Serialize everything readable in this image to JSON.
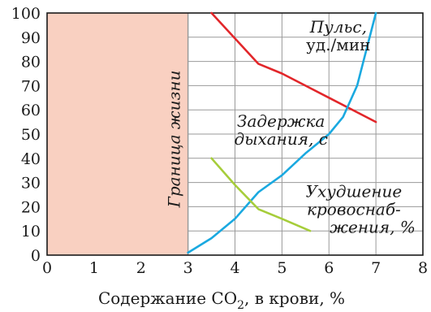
{
  "chart_data": {
    "type": "line",
    "xlabel": "Содержание CO",
    "xlabel_sub": "2",
    "xlabel_tail": ", в крови,  %",
    "xlim": [
      0,
      8
    ],
    "ylim": [
      0,
      100
    ],
    "x_ticks": [
      0,
      1,
      2,
      3,
      4,
      5,
      6,
      7,
      8
    ],
    "y_ticks": [
      0,
      10,
      20,
      30,
      40,
      50,
      60,
      70,
      80,
      90,
      100
    ],
    "grid": true,
    "colors": {
      "zone": "#f9d0c1",
      "pulse": "#e2262a",
      "breath": "#1aa9e0",
      "blood": "#a6cd3a",
      "grid": "#9a9a9a",
      "frame": "#1a1a1a"
    },
    "shaded_region": {
      "x": [
        0,
        3
      ],
      "label": "Граница жизни"
    },
    "series": [
      {
        "key": "pulse",
        "x": [
          3.5,
          4.5,
          5.0,
          6.0,
          7.0
        ],
        "y": [
          100,
          79,
          75,
          65,
          55
        ],
        "label_lines": [
          "Пульс,",
          "уд./мин"
        ]
      },
      {
        "key": "breath",
        "x": [
          3.0,
          3.5,
          4.0,
          4.5,
          5.0,
          5.5,
          6.0,
          6.3,
          6.6,
          7.0
        ],
        "y": [
          1,
          7,
          15,
          26,
          33,
          42,
          50,
          57,
          70,
          100
        ],
        "label_lines": [
          "Задержка",
          "дыхания,  с"
        ]
      },
      {
        "key": "blood",
        "x": [
          3.5,
          4.0,
          4.5,
          5.0,
          5.6
        ],
        "y": [
          40,
          29,
          19,
          15,
          10
        ],
        "label_lines": [
          "Ухудшение",
          "кровоснаб-",
          "жения,  %"
        ]
      }
    ]
  }
}
